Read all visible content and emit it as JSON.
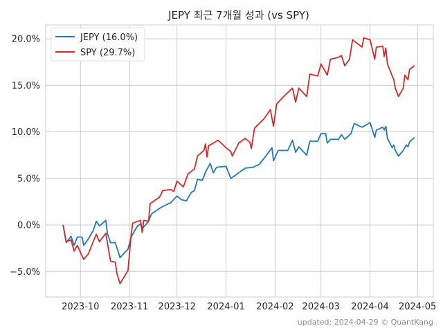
{
  "chart_data": {
    "type": "line",
    "title": "JEPY 최근 7개월 성과 (vs SPY)",
    "xlabel": "",
    "ylabel": "",
    "xlim": [
      "2023-09-09",
      "2024-05-11"
    ],
    "ylim": [
      -7.73,
      21.49
    ],
    "x_ticks": [
      "2023-10-01",
      "2023-11-01",
      "2023-12-01",
      "2024-01-01",
      "2024-02-01",
      "2024-03-01",
      "2024-04-01",
      "2024-05-01"
    ],
    "x_tick_labels": [
      "2023-10",
      "2023-11",
      "2023-12",
      "2024-01",
      "2024-02",
      "2024-03",
      "2024-04",
      "2024-05"
    ],
    "y_ticks": [
      -5,
      0,
      5,
      10,
      15,
      20
    ],
    "y_tick_labels": [
      "−5.0%",
      "0.0%",
      "5.0%",
      "10.0%",
      "15.0%",
      "20.0%"
    ],
    "grid": true,
    "legend_placement": "upper-left",
    "series": [
      {
        "name": "JEPY (16.0%)",
        "color": "#1f77b4",
        "points": [
          [
            "2023-09-20",
            0.0
          ],
          [
            "2023-09-22",
            -1.9
          ],
          [
            "2023-09-25",
            -1.2
          ],
          [
            "2023-09-27",
            -2.2
          ],
          [
            "2023-09-29",
            -1.3
          ],
          [
            "2023-10-02",
            -1.3
          ],
          [
            "2023-10-03",
            -2.2
          ],
          [
            "2023-10-06",
            -1.5
          ],
          [
            "2023-10-09",
            -0.6
          ],
          [
            "2023-10-11",
            0.4
          ],
          [
            "2023-10-13",
            -0.1
          ],
          [
            "2023-10-17",
            0.5
          ],
          [
            "2023-10-18",
            -0.9
          ],
          [
            "2023-10-20",
            -1.9
          ],
          [
            "2023-10-23",
            -1.9
          ],
          [
            "2023-10-26",
            -3.5
          ],
          [
            "2023-10-31",
            -2.6
          ],
          [
            "2023-11-02",
            -1.3
          ],
          [
            "2023-11-06",
            -0.1
          ],
          [
            "2023-11-08",
            0.1
          ],
          [
            "2023-11-09",
            -0.4
          ],
          [
            "2023-11-13",
            0.4
          ],
          [
            "2023-11-15",
            1.2
          ],
          [
            "2023-11-21",
            1.9
          ],
          [
            "2023-11-27",
            2.4
          ],
          [
            "2023-12-01",
            3.1
          ],
          [
            "2023-12-04",
            2.7
          ],
          [
            "2023-12-07",
            2.6
          ],
          [
            "2023-12-10",
            3.5
          ],
          [
            "2023-12-12",
            3.7
          ],
          [
            "2023-12-14",
            4.9
          ],
          [
            "2023-12-17",
            4.8
          ],
          [
            "2023-12-19",
            5.7
          ],
          [
            "2023-12-22",
            6.6
          ],
          [
            "2023-12-24",
            5.6
          ],
          [
            "2023-12-26",
            6.2
          ],
          [
            "2024-01-01",
            6.3
          ],
          [
            "2024-01-04",
            5.0
          ],
          [
            "2024-01-09",
            5.6
          ],
          [
            "2024-01-13",
            6.1
          ],
          [
            "2024-01-18",
            6.2
          ],
          [
            "2024-01-22",
            6.5
          ],
          [
            "2024-01-27",
            7.6
          ],
          [
            "2024-01-30",
            8.3
          ],
          [
            "2024-01-31",
            6.9
          ],
          [
            "2024-02-03",
            8.0
          ],
          [
            "2024-02-09",
            8.0
          ],
          [
            "2024-02-12",
            9.1
          ],
          [
            "2024-02-14",
            7.8
          ],
          [
            "2024-02-16",
            8.4
          ],
          [
            "2024-02-21",
            7.5
          ],
          [
            "2024-02-23",
            9.0
          ],
          [
            "2024-02-28",
            9.0
          ],
          [
            "2024-03-01",
            9.8
          ],
          [
            "2024-03-04",
            9.8
          ],
          [
            "2024-03-05",
            8.8
          ],
          [
            "2024-03-07",
            9.2
          ],
          [
            "2024-03-12",
            9.2
          ],
          [
            "2024-03-14",
            9.7
          ],
          [
            "2024-03-16",
            9.2
          ],
          [
            "2024-03-20",
            9.8
          ],
          [
            "2024-03-22",
            10.9
          ],
          [
            "2024-03-27",
            10.5
          ],
          [
            "2024-04-01",
            11.0
          ],
          [
            "2024-04-02",
            10.5
          ],
          [
            "2024-04-04",
            9.4
          ],
          [
            "2024-04-05",
            10.2
          ],
          [
            "2024-04-09",
            10.5
          ],
          [
            "2024-04-10",
            10.2
          ],
          [
            "2024-04-11",
            10.6
          ],
          [
            "2024-04-12",
            9.3
          ],
          [
            "2024-04-15",
            8.3
          ],
          [
            "2024-04-16",
            8.6
          ],
          [
            "2024-04-17",
            8.0
          ],
          [
            "2024-04-19",
            7.4
          ],
          [
            "2024-04-22",
            8.0
          ],
          [
            "2024-04-24",
            8.6
          ],
          [
            "2024-04-25",
            8.4
          ],
          [
            "2024-04-26",
            8.9
          ],
          [
            "2024-04-29",
            9.4
          ]
        ]
      },
      {
        "name": "SPY (29.7%)",
        "color": "#d62728",
        "points": [
          [
            "2023-09-20",
            0.0
          ],
          [
            "2023-09-22",
            -1.8
          ],
          [
            "2023-09-25",
            -1.6
          ],
          [
            "2023-09-27",
            -2.8
          ],
          [
            "2023-09-29",
            -2.2
          ],
          [
            "2023-10-03",
            -3.7
          ],
          [
            "2023-10-06",
            -3.1
          ],
          [
            "2023-10-09",
            -1.8
          ],
          [
            "2023-10-11",
            -1.0
          ],
          [
            "2023-10-13",
            -1.8
          ],
          [
            "2023-10-17",
            -0.9
          ],
          [
            "2023-10-20",
            -3.9
          ],
          [
            "2023-10-23",
            -4.0
          ],
          [
            "2023-10-24",
            -5.2
          ],
          [
            "2023-10-26",
            -6.3
          ],
          [
            "2023-10-31",
            -4.9
          ],
          [
            "2023-11-02",
            -1.1
          ],
          [
            "2023-11-03",
            0.2
          ],
          [
            "2023-11-08",
            0.5
          ],
          [
            "2023-11-09",
            -0.8
          ],
          [
            "2023-11-10",
            0.5
          ],
          [
            "2023-11-13",
            0.4
          ],
          [
            "2023-11-14",
            2.3
          ],
          [
            "2023-11-20",
            3.0
          ],
          [
            "2023-11-22",
            3.7
          ],
          [
            "2023-11-27",
            3.8
          ],
          [
            "2023-11-29",
            3.6
          ],
          [
            "2023-12-01",
            4.7
          ],
          [
            "2023-12-05",
            4.1
          ],
          [
            "2023-12-08",
            5.5
          ],
          [
            "2023-12-12",
            6.0
          ],
          [
            "2023-12-14",
            7.4
          ],
          [
            "2023-12-18",
            8.0
          ],
          [
            "2023-12-19",
            8.7
          ],
          [
            "2023-12-20",
            7.3
          ],
          [
            "2023-12-21",
            8.5
          ],
          [
            "2023-12-27",
            9.1
          ],
          [
            "2024-01-01",
            8.3
          ],
          [
            "2024-01-04",
            7.9
          ],
          [
            "2024-01-05",
            7.4
          ],
          [
            "2024-01-09",
            8.8
          ],
          [
            "2024-01-13",
            9.3
          ],
          [
            "2024-01-16",
            8.9
          ],
          [
            "2024-01-17",
            8.2
          ],
          [
            "2024-01-19",
            10.4
          ],
          [
            "2024-01-25",
            11.4
          ],
          [
            "2024-01-29",
            12.4
          ],
          [
            "2024-01-31",
            10.6
          ],
          [
            "2024-02-02",
            13.0
          ],
          [
            "2024-02-07",
            13.9
          ],
          [
            "2024-02-12",
            14.7
          ],
          [
            "2024-02-14",
            13.2
          ],
          [
            "2024-02-16",
            14.7
          ],
          [
            "2024-02-21",
            13.8
          ],
          [
            "2024-02-23",
            16.2
          ],
          [
            "2024-02-28",
            16.0
          ],
          [
            "2024-03-01",
            17.3
          ],
          [
            "2024-03-05",
            16.1
          ],
          [
            "2024-03-07",
            17.8
          ],
          [
            "2024-03-12",
            18.0
          ],
          [
            "2024-03-14",
            18.2
          ],
          [
            "2024-03-16",
            17.1
          ],
          [
            "2024-03-19",
            17.8
          ],
          [
            "2024-03-21",
            19.9
          ],
          [
            "2024-03-27",
            19.1
          ],
          [
            "2024-03-28",
            20.1
          ],
          [
            "2024-04-01",
            19.9
          ],
          [
            "2024-04-02",
            19.2
          ],
          [
            "2024-04-04",
            17.8
          ],
          [
            "2024-04-05",
            19.1
          ],
          [
            "2024-04-09",
            19.2
          ],
          [
            "2024-04-10",
            18.1
          ],
          [
            "2024-04-11",
            19.0
          ],
          [
            "2024-04-12",
            17.3
          ],
          [
            "2024-04-16",
            15.6
          ],
          [
            "2024-04-17",
            14.7
          ],
          [
            "2024-04-19",
            13.8
          ],
          [
            "2024-04-22",
            14.7
          ],
          [
            "2024-04-23",
            16.1
          ],
          [
            "2024-04-25",
            15.6
          ],
          [
            "2024-04-26",
            16.7
          ],
          [
            "2024-04-29",
            17.1
          ]
        ]
      }
    ]
  },
  "footer": {
    "note": "updated: 2024-04-29 © QuantKang"
  }
}
